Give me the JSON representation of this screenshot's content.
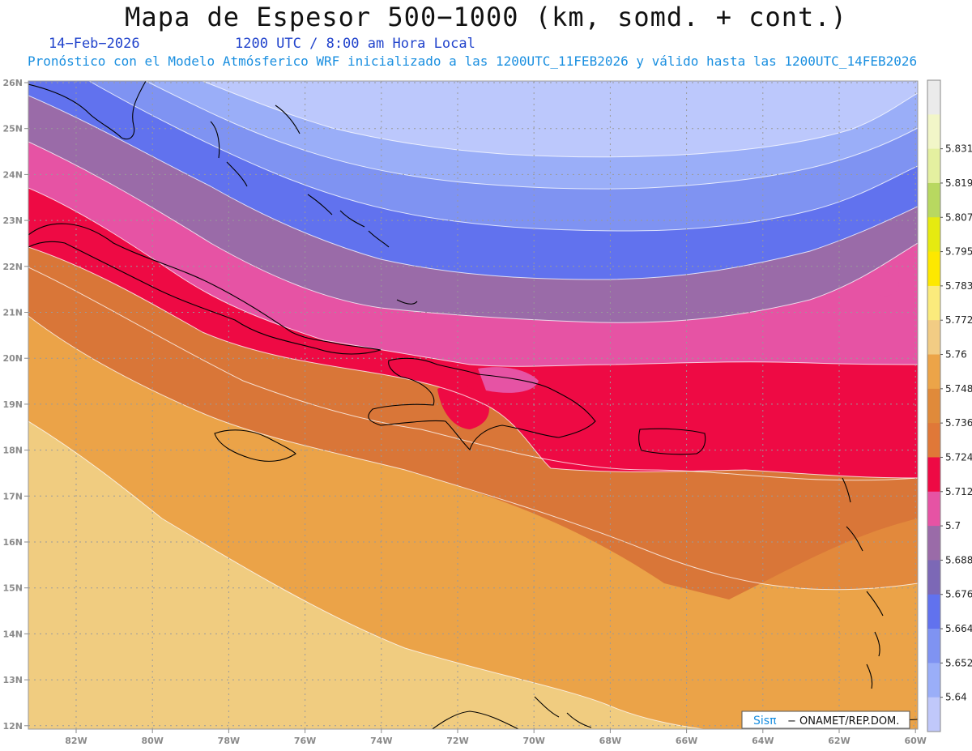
{
  "title": "Mapa de Espesor 500−1000 (km, somd. + cont.)",
  "date": "14−Feb−2026",
  "time": "1200 UTC / 8:00 am Hora Local",
  "model_info": "Pronóstico con el Modelo Atmósferico WRF inicializado a las 1200UTC_11FEB2026 y válido hasta las  1200UTC_14FEB2026",
  "credit_brand": "Sisπ",
  "credit_text": "− ONAMET/REP.DOM.",
  "lat_labels": [
    "26N",
    "25N",
    "24N",
    "23N",
    "22N",
    "21N",
    "20N",
    "19N",
    "18N",
    "17N",
    "16N",
    "15N",
    "14N",
    "13N",
    "12N"
  ],
  "lon_labels": [
    "82W",
    "80W",
    "78W",
    "76W",
    "74W",
    "72W",
    "70W",
    "68W",
    "66W",
    "64W",
    "62W",
    "60W"
  ],
  "colorbar": {
    "colors": [
      "#c0c8fa",
      "#9aaef8",
      "#7f93f2",
      "#6172ee",
      "#7c68b6",
      "#9a6ba8",
      "#e653a4",
      "#ee0a44",
      "#e07838",
      "#e08a3a",
      "#eca448",
      "#f2cc84",
      "#fbeb7c",
      "#fde800",
      "#e6ea10",
      "#b8d860",
      "#e4f0a0",
      "#f2f6c8",
      "#ebebeb"
    ],
    "labels": [
      "5.64",
      "5.652",
      "5.664",
      "5.676",
      "5.688",
      "5.7",
      "5.712",
      "5.724",
      "5.736",
      "5.748",
      "5.76",
      "5.772",
      "5.783",
      "5.795",
      "5.807",
      "5.819",
      "5.831"
    ]
  },
  "bands": [
    {
      "color": "#f0cc80"
    },
    {
      "color": "#eba348"
    },
    {
      "color": "#e2893c"
    },
    {
      "color": "#d97638"
    },
    {
      "color": "#ee0a44"
    },
    {
      "color": "#e653a4"
    },
    {
      "color": "#9a6ba8"
    },
    {
      "color": "#6172ee"
    },
    {
      "color": "#7f93f2"
    },
    {
      "color": "#9aaef8"
    },
    {
      "color": "#bcc8fc"
    }
  ]
}
